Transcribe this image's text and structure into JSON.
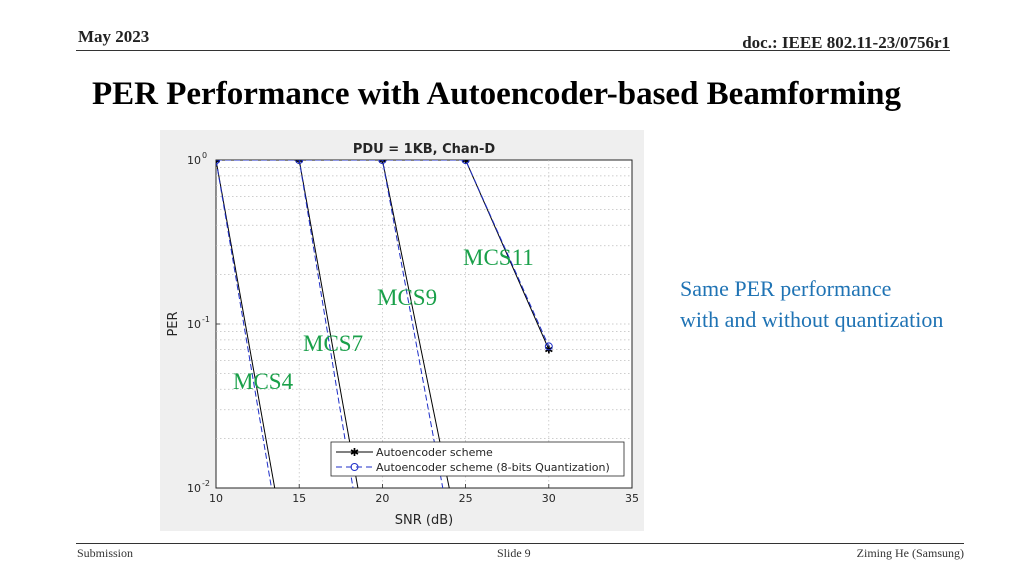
{
  "header": {
    "date": "May 2023",
    "doc": "doc.: IEEE 802.11-23/0756r1"
  },
  "slide": {
    "title": "PER Performance with Autoencoder-based Beamforming"
  },
  "note": {
    "line1": "Same PER performance",
    "line2": "with and without quantization"
  },
  "footer": {
    "left": "Submission",
    "center": "Slide 9",
    "right": "Ziming He (Samsung)"
  },
  "colors": {
    "annotation": "#1aa04a",
    "note": "#1f73b4",
    "series_solid": "#000000",
    "series_dashed": "#1f2fc8"
  },
  "chart_data": {
    "type": "line",
    "title": "PDU = 1KB, Chan-D",
    "xlabel": "SNR (dB)",
    "ylabel": "PER",
    "xlim": [
      10,
      35
    ],
    "ylim": [
      0.01,
      1
    ],
    "yscale": "log",
    "grid": true,
    "xticks": [
      "10",
      "15",
      "20",
      "25",
      "30",
      "35"
    ],
    "yticks": [
      {
        "base": "10",
        "exp": "0"
      },
      {
        "base": "10",
        "exp": "-1"
      },
      {
        "base": "10",
        "exp": "-2"
      }
    ],
    "legend": {
      "position": "bottom-right",
      "entries": [
        "Autoencoder scheme",
        "Autoencoder scheme (8-bits Quantization)"
      ]
    },
    "annotations": [
      "MCS4",
      "MCS7",
      "MCS9",
      "MCS11"
    ],
    "series": [
      {
        "group": "MCS4",
        "style": "solid",
        "x": [
          10,
          13.6
        ],
        "y": [
          1,
          0.009
        ]
      },
      {
        "group": "MCS4",
        "style": "dashed",
        "x": [
          10,
          13.4
        ],
        "y": [
          1,
          0.009
        ]
      },
      {
        "group": "MCS7",
        "style": "solid",
        "x": [
          10,
          15,
          18.6
        ],
        "y": [
          1,
          1,
          0.009
        ]
      },
      {
        "group": "MCS7",
        "style": "dashed",
        "x": [
          10,
          15,
          18.3
        ],
        "y": [
          1,
          1,
          0.009
        ]
      },
      {
        "group": "MCS9",
        "style": "solid",
        "x": [
          10,
          20,
          24.1
        ],
        "y": [
          1,
          1,
          0.009
        ]
      },
      {
        "group": "MCS9",
        "style": "dashed",
        "x": [
          10,
          20,
          23.7
        ],
        "y": [
          1,
          1,
          0.009
        ]
      },
      {
        "group": "MCS11",
        "style": "solid",
        "x": [
          10,
          25,
          30
        ],
        "y": [
          1,
          1,
          0.07
        ]
      },
      {
        "group": "MCS11",
        "style": "dashed",
        "x": [
          10,
          25,
          30
        ],
        "y": [
          1,
          1,
          0.073
        ]
      }
    ]
  }
}
